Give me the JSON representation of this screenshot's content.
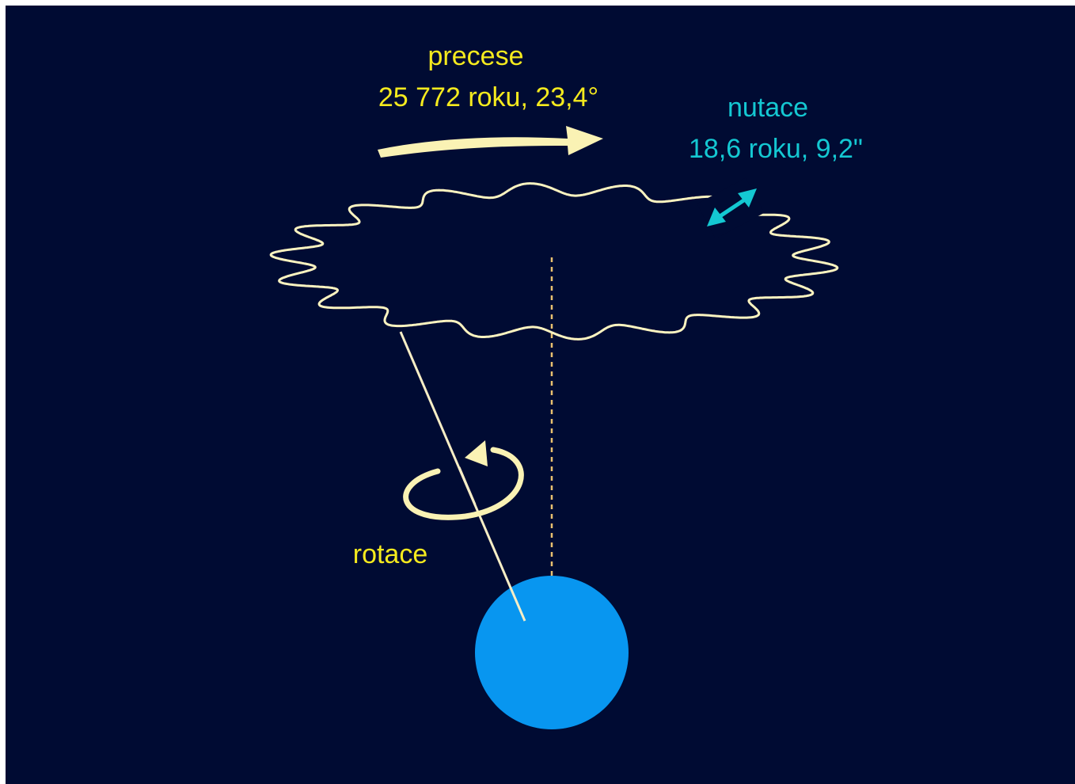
{
  "precession": {
    "title": "precese",
    "detail": "25 772 roku, 23,4°"
  },
  "nutation": {
    "title": "nutace",
    "detail": "18,6 roku, 9,2\""
  },
  "rotation": {
    "label": "rotace"
  },
  "colors": {
    "background": "#000b33",
    "outer_frame": "#ffffff",
    "precession_text": "#f5ea1e",
    "nutation_text": "#14c8d2",
    "path_stroke": "#fbf3c0",
    "arrow_fill": "#faf2b4",
    "nutation_arrow": "#14c8d2",
    "earth": "#0896f0",
    "axis_line": "#f7eec6",
    "vertical_reference": "#e8c070"
  },
  "icons": {
    "precession_arrow": "curved-arrow-right",
    "nutation_arrow": "double-headed-arrow",
    "rotation_arrow": "circular-arrow",
    "earth": "planet-circle"
  }
}
